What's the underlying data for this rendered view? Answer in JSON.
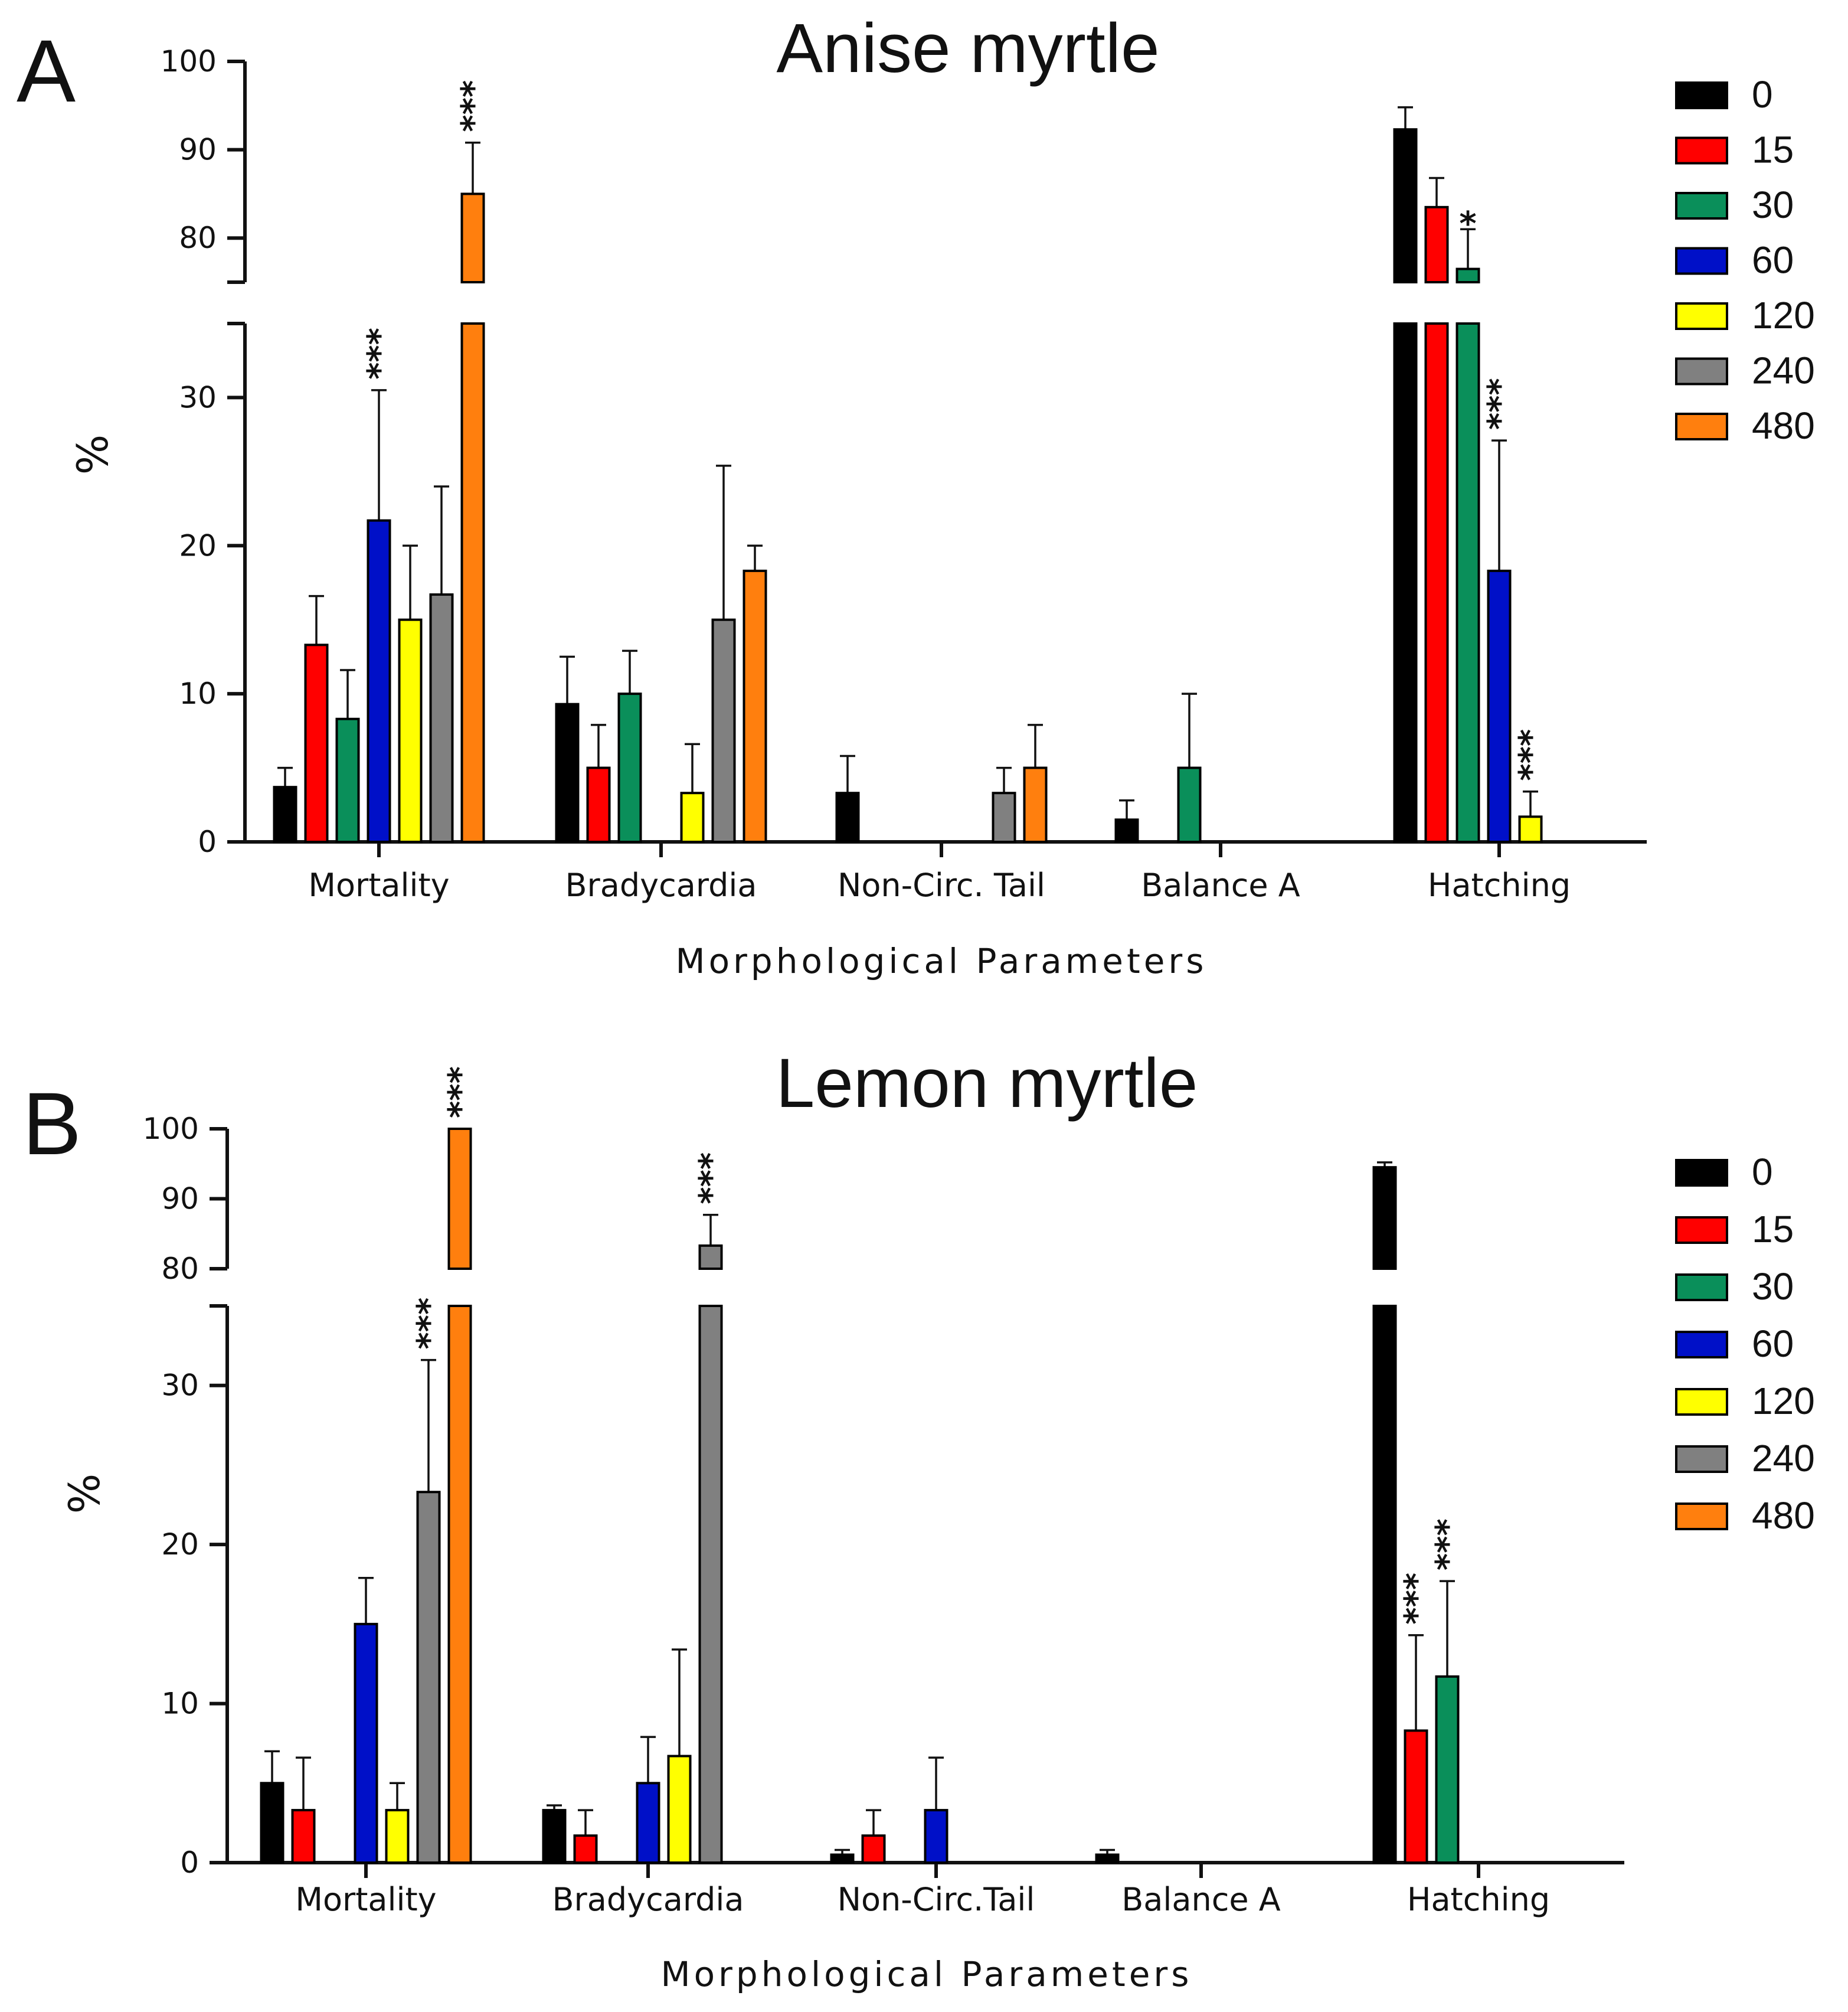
{
  "legend": {
    "title": "",
    "entries": [
      "0",
      "15",
      "30",
      "60",
      "120",
      "240",
      "480"
    ],
    "colors": [
      "#000000",
      "#ff0000",
      "#0a8f5a",
      "#0010c8",
      "#ffff00",
      "#808080",
      "#ff7f0e"
    ]
  },
  "chart_data": [
    {
      "panel": "A",
      "type": "bar",
      "title": "Anise myrtle",
      "xlabel": "Morphological Parameters",
      "ylabel": "%",
      "categories": [
        "Mortality",
        "Bradycardia",
        "Non-Circ. Tail",
        "Balance A",
        "Hatching"
      ],
      "y_axis": {
        "broken": true,
        "lower_range": [
          0,
          35
        ],
        "upper_range": [
          75,
          100
        ],
        "lower_ticks": [
          0,
          10,
          20,
          30
        ],
        "upper_ticks": [
          80,
          90,
          100
        ]
      },
      "series": [
        {
          "name": "0",
          "values": [
            3.7,
            9.3,
            3.3,
            1.5,
            92.3
          ],
          "errors": [
            1.3,
            3.2,
            2.5,
            1.3,
            2.5
          ]
        },
        {
          "name": "15",
          "values": [
            13.3,
            5.0,
            0,
            0,
            83.5
          ],
          "errors": [
            3.3,
            2.9,
            0,
            0,
            3.3
          ]
        },
        {
          "name": "30",
          "values": [
            8.3,
            10.0,
            0,
            5.0,
            76.5
          ],
          "errors": [
            3.3,
            2.9,
            0,
            5.0,
            4.5
          ]
        },
        {
          "name": "60",
          "values": [
            21.7,
            0,
            0,
            0,
            18.3
          ],
          "errors": [
            8.8,
            0,
            0,
            0,
            8.8
          ]
        },
        {
          "name": "120",
          "values": [
            15.0,
            3.3,
            0,
            0,
            1.7
          ],
          "errors": [
            5.0,
            3.3,
            0,
            0,
            1.7
          ]
        },
        {
          "name": "240",
          "values": [
            16.7,
            15.0,
            3.3,
            0,
            0
          ],
          "errors": [
            7.3,
            10.4,
            1.7,
            0,
            0
          ]
        },
        {
          "name": "480",
          "values": [
            85.0,
            18.3,
            5.0,
            0,
            0
          ],
          "errors": [
            5.8,
            1.7,
            2.9,
            0,
            0
          ]
        }
      ],
      "annotations": [
        {
          "category": "Mortality",
          "series": "60",
          "text": "***"
        },
        {
          "category": "Mortality",
          "series": "480",
          "text": "***"
        },
        {
          "category": "Hatching",
          "series": "30",
          "text": "*"
        },
        {
          "category": "Hatching",
          "series": "60",
          "text": "***"
        },
        {
          "category": "Hatching",
          "series": "120",
          "text": "***"
        }
      ]
    },
    {
      "panel": "B",
      "type": "bar",
      "title": "Lemon myrtle",
      "xlabel": "Morphological Parameters",
      "ylabel": "%",
      "categories": [
        "Mortality",
        "Bradycardia",
        "Non-Circ.Tail",
        "Balance A",
        "Hatching"
      ],
      "y_axis": {
        "broken": true,
        "lower_range": [
          0,
          35
        ],
        "upper_range": [
          80,
          100
        ],
        "lower_ticks": [
          0,
          10,
          20,
          30
        ],
        "upper_ticks": [
          80,
          90,
          100
        ]
      },
      "series": [
        {
          "name": "0",
          "values": [
            5.0,
            3.3,
            0.5,
            0.5,
            94.5
          ],
          "errors": [
            2.0,
            0.3,
            0.3,
            0.3,
            0.7
          ]
        },
        {
          "name": "15",
          "values": [
            3.3,
            1.7,
            1.7,
            0,
            8.3
          ],
          "errors": [
            3.3,
            1.6,
            1.6,
            0,
            6.0
          ]
        },
        {
          "name": "30",
          "values": [
            0,
            0,
            0,
            0,
            11.7
          ],
          "errors": [
            0,
            0,
            0,
            0,
            6.0
          ]
        },
        {
          "name": "60",
          "values": [
            15.0,
            5.0,
            3.3,
            0,
            0
          ],
          "errors": [
            2.9,
            2.9,
            3.3,
            0,
            0
          ]
        },
        {
          "name": "120",
          "values": [
            3.3,
            6.7,
            0,
            0,
            0
          ],
          "errors": [
            1.7,
            6.7,
            0,
            0,
            0
          ]
        },
        {
          "name": "240",
          "values": [
            23.3,
            83.3,
            0,
            0,
            0
          ],
          "errors": [
            8.3,
            4.4,
            0,
            0,
            0
          ]
        },
        {
          "name": "480",
          "values": [
            100.0,
            0,
            0,
            0,
            0
          ],
          "errors": [
            0,
            0,
            0,
            0,
            0
          ]
        }
      ],
      "annotations": [
        {
          "category": "Mortality",
          "series": "240",
          "text": "***"
        },
        {
          "category": "Mortality",
          "series": "480",
          "text": "***"
        },
        {
          "category": "Bradycardia",
          "series": "240",
          "text": "***"
        },
        {
          "category": "Hatching",
          "series": "15",
          "text": "***"
        },
        {
          "category": "Hatching",
          "series": "30",
          "text": "***"
        }
      ]
    }
  ]
}
